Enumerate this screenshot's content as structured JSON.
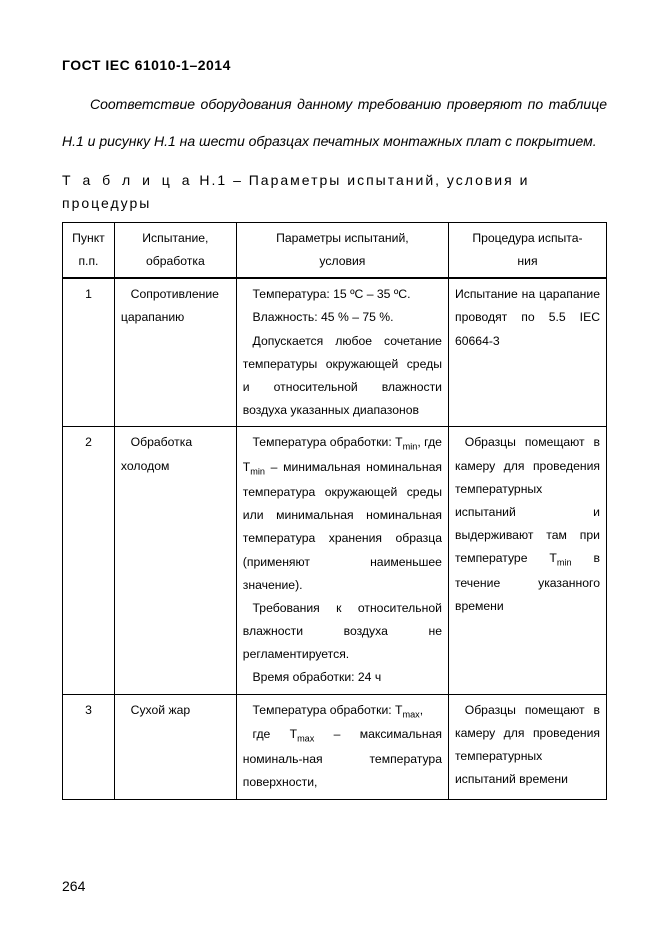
{
  "header": "ГОСТ IEC 61010-1–2014",
  "intro": "Соответствие оборудования данному требованию проверяют по таблице H.1 и рисунку H.1 на шести образцах печатных монтажных плат с покрытием.",
  "caption_prefix": "Т а б л и ц а",
  "caption_rest": " H.1 – Параметры испытаний, условия и процедуры",
  "table": {
    "head": {
      "c1a": "Пункт",
      "c1b": "п.п.",
      "c2a": "Испытание,",
      "c2b": "обработка",
      "c3a": "Параметры испытаний,",
      "c3b": "условия",
      "c4a": "Процедура испыта-",
      "c4b": "ния"
    },
    "r1": {
      "num": "1",
      "test": "Сопротивление царапанию",
      "cond_line1": "Температура: 15 ºС – 35 ºС.",
      "cond_line2": "Влажность: 45 % – 75 %.",
      "cond_line3": "Допускается любое сочетание температуры окружающей среды и относительной влажности воздуха указанных диапазонов",
      "proc": "Испытание на царапание проводят по 5.5 IEC 60664-3"
    },
    "r2": {
      "num": "2",
      "test": "Обработка холодом",
      "cond_a": "Температура обработки: T",
      "cond_b": ", где T",
      "cond_c": " – минимальная номинальная температура окружающей среды или минимальная номинальная температура хранения образца (применяют наименьшее значение).",
      "cond_d": "Требования к относительной влажности воздуха не регламентируется.",
      "cond_e": "Время обработки: 24 ч",
      "proc_a": "Образцы помещают в камеру для проведения температурных испытаний и выдерживают там при температуре T",
      "proc_b": " в течение указанного времени",
      "sub_min": "min"
    },
    "r3": {
      "num": "3",
      "test": "Сухой жар",
      "cond_a": "Температура обработки: T",
      "cond_b": ",",
      "cond_c": "где T",
      "cond_d": " – максимальная номиналь-ная температура поверхности,",
      "proc": "Образцы помещают в камеру для проведения температурных испытаний времени",
      "sub_max": "max"
    }
  },
  "page_number": "264"
}
